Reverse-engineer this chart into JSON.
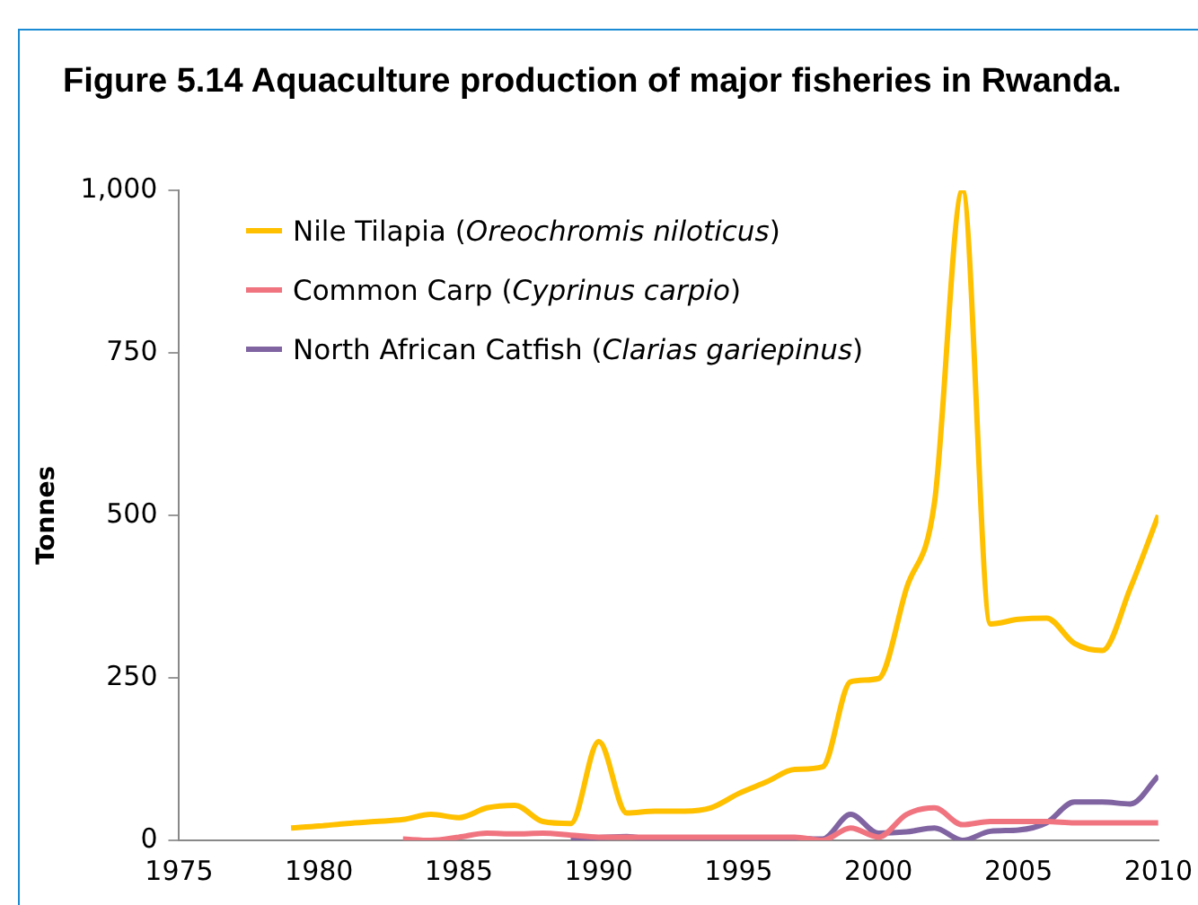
{
  "chart_data": {
    "type": "line",
    "title": "Figure 5.14 Aquaculture production of major fisheries in Rwanda.",
    "ylabel": "Tonnes",
    "xlim": [
      1975,
      2010
    ],
    "xticks": [
      1975,
      1980,
      1985,
      1990,
      1995,
      2000,
      2005,
      2010
    ],
    "ylim": [
      0,
      1000
    ],
    "yticks": [
      0,
      250,
      500,
      750,
      {
        "value": 1000,
        "label": "1,000"
      }
    ],
    "grid": false,
    "legend": "top left",
    "marker": "none",
    "line_style": "solid",
    "series": [
      {
        "name": "Nile Tilapia (Oreochromis niloticus)",
        "color": "#ffc000",
        "x": [
          1979,
          1980,
          1981,
          1982,
          1983,
          1984,
          1985,
          1986,
          1987,
          1988,
          1989,
          1990,
          1991,
          1992,
          1993,
          1994,
          1995,
          1996,
          1997,
          1998,
          1999,
          2000,
          2001,
          2002,
          2003,
          2004,
          2005,
          2006,
          2007,
          2008,
          2009,
          2010
        ],
        "values": [
          19,
          22,
          26,
          29,
          32,
          40,
          35,
          50,
          54,
          29,
          26,
          152,
          42,
          45,
          45,
          50,
          72,
          90,
          109,
          113,
          244,
          249,
          388,
          520,
          1000,
          333,
          340,
          342,
          303,
          292,
          388,
          500
        ]
      },
      {
        "name": "Common Carp (Cyprinus carpio)",
        "color": "#f07480",
        "x": [
          1983,
          1984,
          1985,
          1986,
          1987,
          1988,
          1989,
          1990,
          1991,
          1992,
          1993,
          1994,
          1995,
          1996,
          1997,
          1998,
          1999,
          2000,
          2001,
          2002,
          2003,
          2004,
          2005,
          2006,
          2007,
          2008,
          2009,
          2010
        ],
        "values": [
          2,
          0,
          5,
          11,
          10,
          11,
          8,
          5,
          5,
          5,
          5,
          5,
          5,
          5,
          5,
          0,
          19,
          5,
          40,
          50,
          24,
          29,
          29,
          29,
          27,
          27,
          27,
          27
        ]
      },
      {
        "name": "North African Catfish (Clarias gariepinus)",
        "color": "#8064a2",
        "x": [
          1989,
          1990,
          1991,
          1992,
          1993,
          1994,
          1995,
          1996,
          1997,
          1998,
          1999,
          2000,
          2001,
          2002,
          2003,
          2004,
          2005,
          2006,
          2007,
          2008,
          2009,
          2010
        ],
        "values": [
          2,
          4,
          6,
          1,
          1,
          3,
          3,
          3,
          3,
          2,
          40,
          11,
          13,
          19,
          0,
          14,
          16,
          27,
          59,
          59,
          56,
          99
        ]
      }
    ]
  }
}
